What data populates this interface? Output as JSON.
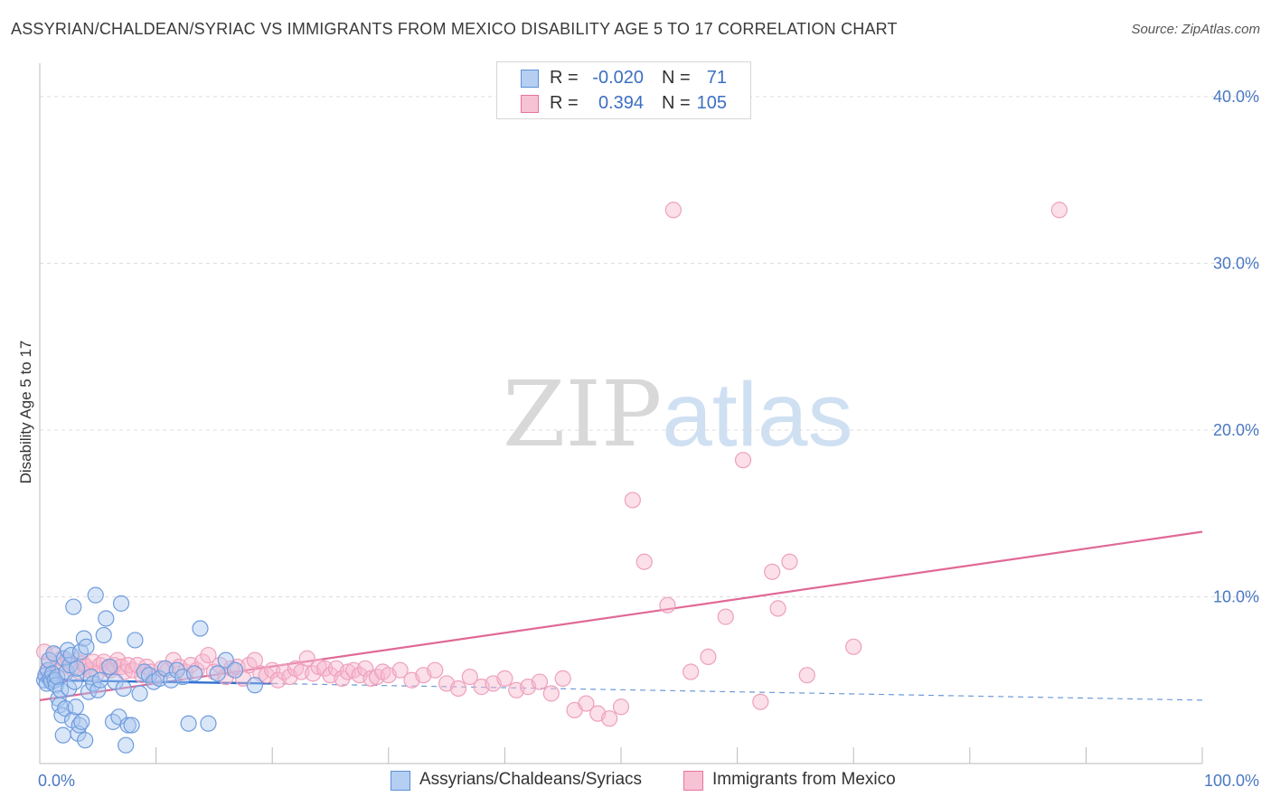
{
  "title": "ASSYRIAN/CHALDEAN/SYRIAC VS IMMIGRANTS FROM MEXICO DISABILITY AGE 5 TO 17 CORRELATION CHART",
  "source": "Source: ZipAtlas.com",
  "watermark": {
    "zip": "ZIP",
    "atlas": "atlas"
  },
  "legend": {
    "series1": {
      "r_label": "R =",
      "r_value": "-0.020",
      "n_label": "N =",
      "n_value": "71"
    },
    "series2": {
      "r_label": "R =",
      "r_value": "0.394",
      "n_label": "N =",
      "n_value": "105"
    }
  },
  "bottom_legend": {
    "series1": "Assyrians/Chaldeans/Syriacs",
    "series2": "Immigrants from Mexico"
  },
  "colors": {
    "blue": "#5b8fd6",
    "blue_fill": "#b5cff2",
    "pink": "#e8739e",
    "pink_fill": "#f6c2d4"
  },
  "chart_data": {
    "type": "scatter",
    "title": "ASSYRIAN/CHALDEAN/SYRIAC VS IMMIGRANTS FROM MEXICO DISABILITY AGE 5 TO 17 CORRELATION CHART",
    "xlabel": "",
    "ylabel": "Disability Age 5 to 17",
    "xlim": [
      0,
      100
    ],
    "ylim": [
      0,
      42
    ],
    "x_tick_labels": [
      "0.0%",
      "100.0%"
    ],
    "y_ticks": [
      10,
      20,
      30,
      40
    ],
    "y_tick_labels": [
      "10.0%",
      "20.0%",
      "30.0%",
      "40.0%"
    ],
    "series": [
      {
        "name": "Assyrians/Chaldeans/Syriacs",
        "color": "#5b8fd6",
        "r": -0.02,
        "n": 71,
        "trend": {
          "x0": 0,
          "y0": 5.0,
          "x1": 20,
          "y1": 4.8,
          "dashed_to_x": 100,
          "dashed_to_y": 3.8
        },
        "points": [
          [
            0.4,
            5.0
          ],
          [
            0.5,
            5.3
          ],
          [
            0.6,
            4.8
          ],
          [
            0.7,
            5.6
          ],
          [
            0.8,
            6.2
          ],
          [
            0.9,
            5.1
          ],
          [
            1.0,
            4.9
          ],
          [
            1.1,
            5.4
          ],
          [
            1.2,
            6.6
          ],
          [
            1.3,
            5.0
          ],
          [
            1.4,
            4.7
          ],
          [
            1.5,
            5.2
          ],
          [
            1.6,
            3.9
          ],
          [
            1.7,
            3.5
          ],
          [
            1.8,
            4.4
          ],
          [
            1.9,
            2.9
          ],
          [
            2.0,
            1.7
          ],
          [
            2.1,
            6.3
          ],
          [
            2.2,
            3.3
          ],
          [
            2.3,
            5.5
          ],
          [
            2.4,
            6.8
          ],
          [
            2.5,
            4.5
          ],
          [
            2.6,
            5.9
          ],
          [
            2.7,
            6.5
          ],
          [
            2.8,
            2.6
          ],
          [
            2.9,
            9.4
          ],
          [
            3.0,
            4.9
          ],
          [
            3.1,
            3.4
          ],
          [
            3.2,
            5.7
          ],
          [
            3.3,
            1.8
          ],
          [
            3.4,
            2.3
          ],
          [
            3.5,
            6.7
          ],
          [
            3.6,
            2.5
          ],
          [
            3.8,
            7.5
          ],
          [
            3.9,
            1.4
          ],
          [
            4.0,
            7.0
          ],
          [
            4.2,
            4.3
          ],
          [
            4.4,
            5.2
          ],
          [
            4.6,
            4.8
          ],
          [
            4.8,
            10.1
          ],
          [
            5.0,
            4.4
          ],
          [
            5.2,
            5.0
          ],
          [
            5.5,
            7.7
          ],
          [
            5.7,
            8.7
          ],
          [
            6.0,
            5.8
          ],
          [
            6.3,
            2.5
          ],
          [
            6.5,
            4.9
          ],
          [
            6.8,
            2.8
          ],
          [
            7.0,
            9.6
          ],
          [
            7.2,
            4.5
          ],
          [
            7.4,
            1.1
          ],
          [
            7.6,
            2.3
          ],
          [
            7.9,
            2.3
          ],
          [
            8.2,
            7.4
          ],
          [
            8.6,
            4.2
          ],
          [
            9.0,
            5.5
          ],
          [
            9.4,
            5.3
          ],
          [
            9.8,
            4.9
          ],
          [
            10.3,
            5.1
          ],
          [
            10.8,
            5.7
          ],
          [
            11.3,
            5.0
          ],
          [
            11.8,
            5.6
          ],
          [
            12.3,
            5.2
          ],
          [
            12.8,
            2.4
          ],
          [
            13.3,
            5.4
          ],
          [
            13.8,
            8.1
          ],
          [
            14.5,
            2.4
          ],
          [
            15.3,
            5.4
          ],
          [
            16.0,
            6.2
          ],
          [
            16.8,
            5.6
          ],
          [
            18.5,
            4.7
          ]
        ]
      },
      {
        "name": "Immigrants from Mexico",
        "color": "#e8739e",
        "r": 0.394,
        "n": 105,
        "trend": {
          "x0": 0,
          "y0": 3.8,
          "x1": 100,
          "y1": 13.9
        },
        "points": [
          [
            0.4,
            6.7
          ],
          [
            0.6,
            5.5
          ],
          [
            0.8,
            6.0
          ],
          [
            1.0,
            5.2
          ],
          [
            1.3,
            6.5
          ],
          [
            1.6,
            5.9
          ],
          [
            1.9,
            6.3
          ],
          [
            2.2,
            5.4
          ],
          [
            2.5,
            6.1
          ],
          [
            2.8,
            5.7
          ],
          [
            3.1,
            6.2
          ],
          [
            3.4,
            5.5
          ],
          [
            3.7,
            6.0
          ],
          [
            4.0,
            5.8
          ],
          [
            4.3,
            5.6
          ],
          [
            4.6,
            6.1
          ],
          [
            4.9,
            5.4
          ],
          [
            5.2,
            5.9
          ],
          [
            5.5,
            6.1
          ],
          [
            5.8,
            5.7
          ],
          [
            6.1,
            5.6
          ],
          [
            6.4,
            5.9
          ],
          [
            6.7,
            6.2
          ],
          [
            7.0,
            5.8
          ],
          [
            7.3,
            5.5
          ],
          [
            7.6,
            5.9
          ],
          [
            8.0,
            5.6
          ],
          [
            8.4,
            5.9
          ],
          [
            8.8,
            5.3
          ],
          [
            9.2,
            5.8
          ],
          [
            9.6,
            5.5
          ],
          [
            10.0,
            5.2
          ],
          [
            10.5,
            5.7
          ],
          [
            11.0,
            5.6
          ],
          [
            11.5,
            6.2
          ],
          [
            12.0,
            5.8
          ],
          [
            12.5,
            5.5
          ],
          [
            13.0,
            5.9
          ],
          [
            13.5,
            5.6
          ],
          [
            14.0,
            6.1
          ],
          [
            14.5,
            6.5
          ],
          [
            15.0,
            5.5
          ],
          [
            15.5,
            5.9
          ],
          [
            16.0,
            5.2
          ],
          [
            16.5,
            5.7
          ],
          [
            17.0,
            5.8
          ],
          [
            17.5,
            5.1
          ],
          [
            18.0,
            5.9
          ],
          [
            18.5,
            6.2
          ],
          [
            19.0,
            5.4
          ],
          [
            19.5,
            5.3
          ],
          [
            20.0,
            5.6
          ],
          [
            20.5,
            5.0
          ],
          [
            21.0,
            5.5
          ],
          [
            21.5,
            5.2
          ],
          [
            22.0,
            5.7
          ],
          [
            22.5,
            5.5
          ],
          [
            23.0,
            6.3
          ],
          [
            23.5,
            5.4
          ],
          [
            24.0,
            5.8
          ],
          [
            24.5,
            5.7
          ],
          [
            25.0,
            5.3
          ],
          [
            25.5,
            5.7
          ],
          [
            26.0,
            5.1
          ],
          [
            26.5,
            5.5
          ],
          [
            27.0,
            5.6
          ],
          [
            27.5,
            5.3
          ],
          [
            28.0,
            5.7
          ],
          [
            28.5,
            5.1
          ],
          [
            29.0,
            5.2
          ],
          [
            29.5,
            5.5
          ],
          [
            30.0,
            5.3
          ],
          [
            31.0,
            5.6
          ],
          [
            32.0,
            5.0
          ],
          [
            33.0,
            5.3
          ],
          [
            34.0,
            5.6
          ],
          [
            35.0,
            4.8
          ],
          [
            36.0,
            4.5
          ],
          [
            37.0,
            5.2
          ],
          [
            38.0,
            4.6
          ],
          [
            39.0,
            4.8
          ],
          [
            40.0,
            5.1
          ],
          [
            41.0,
            4.4
          ],
          [
            42.0,
            4.6
          ],
          [
            43.0,
            4.9
          ],
          [
            44.0,
            4.2
          ],
          [
            45.0,
            5.1
          ],
          [
            46.0,
            3.2
          ],
          [
            47.0,
            3.6
          ],
          [
            48.0,
            3.0
          ],
          [
            49.0,
            2.7
          ],
          [
            50.0,
            3.4
          ],
          [
            51.0,
            15.8
          ],
          [
            52.0,
            12.1
          ],
          [
            54.0,
            9.5
          ],
          [
            56.0,
            5.5
          ],
          [
            57.5,
            6.4
          ],
          [
            59.0,
            8.8
          ],
          [
            60.5,
            18.2
          ],
          [
            62.0,
            3.7
          ],
          [
            63.0,
            11.5
          ],
          [
            63.5,
            9.3
          ],
          [
            64.5,
            12.1
          ],
          [
            66.0,
            5.3
          ],
          [
            70.0,
            7.0
          ],
          [
            54.5,
            33.2
          ],
          [
            87.7,
            33.2
          ]
        ]
      }
    ]
  }
}
